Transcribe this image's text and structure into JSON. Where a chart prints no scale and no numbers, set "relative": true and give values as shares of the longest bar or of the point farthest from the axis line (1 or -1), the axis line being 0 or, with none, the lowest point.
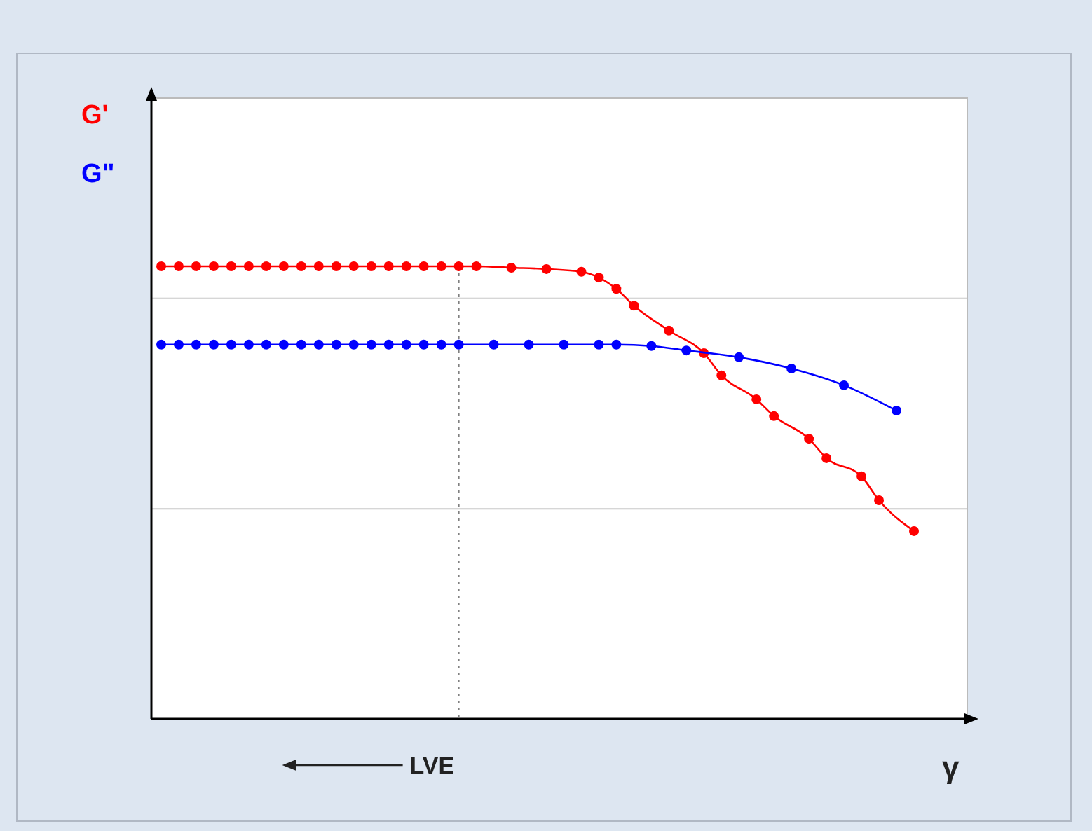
{
  "chart_data": {
    "type": "line",
    "relative": true,
    "xlabel": "γ",
    "legend": "top left",
    "marker": "circle",
    "line_style": "solid",
    "annotations": [
      "LVE"
    ],
    "categories": [
      null,
      null,
      null,
      null,
      null,
      null,
      null,
      null,
      null,
      null,
      null,
      null,
      null,
      null,
      null,
      null,
      null,
      null,
      null,
      null,
      null,
      null,
      null,
      null,
      null,
      null,
      null,
      null,
      null,
      null,
      null,
      null,
      null,
      null,
      null,
      null,
      null,
      null,
      null,
      null,
      null,
      null,
      null,
      null
    ],
    "series": [
      {
        "name": "G'",
        "color": "#ff0000",
        "values": [
          1,
          1,
          1,
          1,
          1,
          1,
          1,
          1,
          1,
          1,
          1,
          1,
          1,
          1,
          1,
          1,
          1,
          1,
          1,
          null,
          0.997,
          null,
          0.994,
          null,
          0.988,
          0.975,
          0.95,
          0.913,
          null,
          0.858,
          null,
          0.808,
          0.759,
          null,
          0.706,
          0.669,
          null,
          0.619,
          0.576,
          null,
          0.536,
          0.483,
          null,
          0.415
        ]
      },
      {
        "name": "G\"",
        "color": "#0000ff",
        "values": [
          0.827,
          0.827,
          0.827,
          0.827,
          0.827,
          0.827,
          0.827,
          0.827,
          0.827,
          0.827,
          0.827,
          0.827,
          0.827,
          0.827,
          0.827,
          0.827,
          0.827,
          0.827,
          null,
          0.827,
          null,
          0.827,
          null,
          0.827,
          null,
          0.827,
          0.827,
          null,
          0.824,
          null,
          0.814,
          null,
          null,
          0.799,
          null,
          null,
          0.774,
          null,
          null,
          0.737,
          null,
          null,
          0.681,
          null
        ]
      }
    ],
    "ref_lines": [
      {
        "axis": "y",
        "value": 0.929,
        "color": "#c8c8c8",
        "line_style": "solid"
      },
      {
        "axis": "y",
        "value": 0.464,
        "color": "#c8c8c8",
        "line_style": "solid"
      }
    ]
  }
}
